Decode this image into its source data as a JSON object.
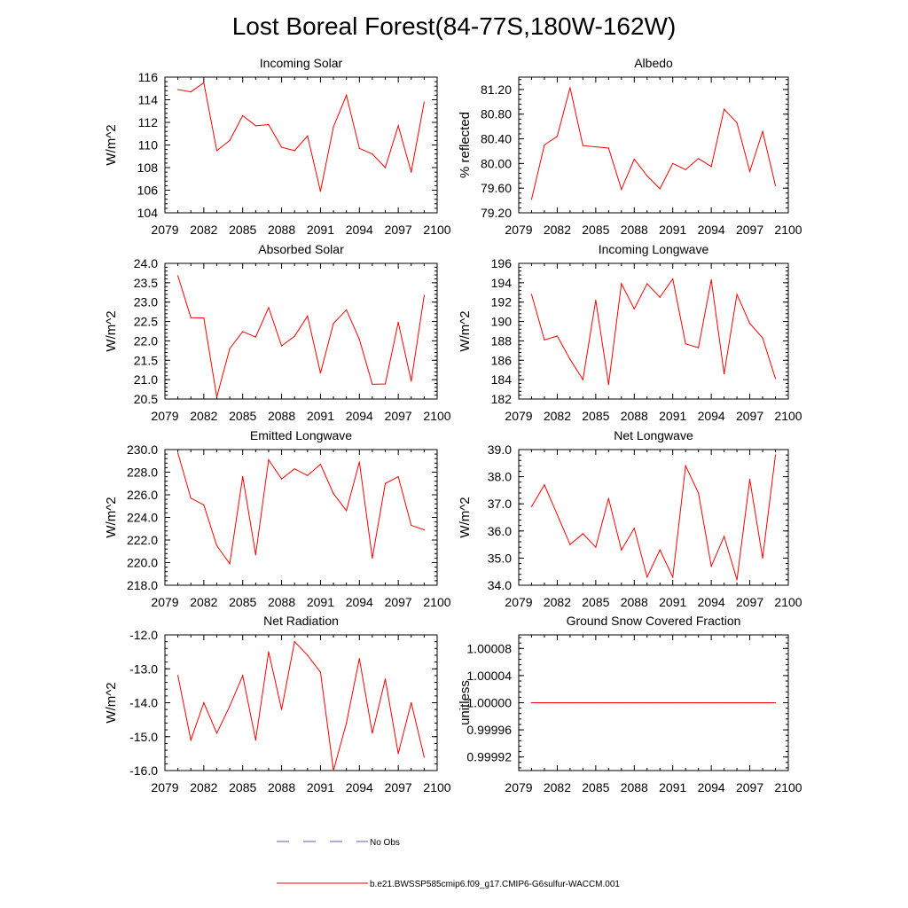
{
  "title": "Lost Boreal Forest(84-77S,180W-162W)",
  "legend": {
    "no_obs_label": "No Obs",
    "run_label": "b.e21.BWSSP585cmip6.f09_g17.CMIP6-G6sulfur-WACCM.001",
    "no_obs_color": "#5a5ab4",
    "run_color": "#ff0000"
  },
  "chart_data": [
    {
      "type": "line",
      "title": "Incoming Solar",
      "ylabel": "W/m^2",
      "xlim": [
        2079,
        2100
      ],
      "ylim": [
        104,
        116
      ],
      "xticks": [
        "2079",
        "2082",
        "2085",
        "2088",
        "2091",
        "2094",
        "2097",
        "2100"
      ],
      "yticks": [
        "104",
        "106",
        "108",
        "110",
        "112",
        "114",
        "116"
      ],
      "x": [
        2080,
        2081,
        2082,
        2083,
        2084,
        2085,
        2086,
        2087,
        2088,
        2089,
        2090,
        2091,
        2092,
        2093,
        2094,
        2095,
        2096,
        2097,
        2098,
        2099
      ],
      "series": [
        {
          "values": [
            114.9,
            114.7,
            115.5,
            109.5,
            110.4,
            112.6,
            111.7,
            111.8,
            109.8,
            109.5,
            110.8,
            105.9,
            111.6,
            114.4,
            109.7,
            109.2,
            108.0,
            111.7,
            107.6,
            113.8
          ]
        }
      ]
    },
    {
      "type": "line",
      "title": "Albedo",
      "ylabel": "% reflected",
      "xlim": [
        2079,
        2100
      ],
      "ylim": [
        79.2,
        81.4
      ],
      "xticks": [
        "2079",
        "2082",
        "2085",
        "2088",
        "2091",
        "2094",
        "2097",
        "2100"
      ],
      "yticks": [
        "79.20",
        "79.60",
        "80.00",
        "80.40",
        "80.80",
        "81.20"
      ],
      "x": [
        2080,
        2081,
        2082,
        2083,
        2084,
        2085,
        2086,
        2087,
        2088,
        2089,
        2090,
        2091,
        2092,
        2093,
        2094,
        2095,
        2096,
        2097,
        2098,
        2099
      ],
      "series": [
        {
          "values": [
            79.42,
            80.3,
            80.44,
            81.23,
            80.29,
            80.27,
            80.25,
            79.58,
            80.07,
            79.8,
            79.59,
            80.0,
            79.9,
            80.08,
            79.95,
            80.88,
            80.66,
            79.87,
            80.52,
            79.64
          ]
        }
      ]
    },
    {
      "type": "line",
      "title": "Absorbed Solar",
      "ylabel": "W/m^2",
      "xlim": [
        2079,
        2100
      ],
      "ylim": [
        20.5,
        24.0
      ],
      "xticks": [
        "2079",
        "2082",
        "2085",
        "2088",
        "2091",
        "2094",
        "2097",
        "2100"
      ],
      "yticks": [
        "20.5",
        "21.0",
        "21.5",
        "22.0",
        "22.5",
        "23.0",
        "23.5",
        "24.0"
      ],
      "x": [
        2080,
        2081,
        2082,
        2083,
        2084,
        2085,
        2086,
        2087,
        2088,
        2089,
        2090,
        2091,
        2092,
        2093,
        2094,
        2095,
        2096,
        2097,
        2098,
        2099
      ],
      "series": [
        {
          "values": [
            23.68,
            22.6,
            22.59,
            20.55,
            21.8,
            22.24,
            22.1,
            22.86,
            21.87,
            22.12,
            22.64,
            21.17,
            22.45,
            22.8,
            22.04,
            20.88,
            20.89,
            22.48,
            20.96,
            23.17
          ]
        }
      ]
    },
    {
      "type": "line",
      "title": "Incoming Longwave",
      "ylabel": "W/m^2",
      "xlim": [
        2079,
        2100
      ],
      "ylim": [
        182,
        196
      ],
      "xticks": [
        "2079",
        "2082",
        "2085",
        "2088",
        "2091",
        "2094",
        "2097",
        "2100"
      ],
      "yticks": [
        "182",
        "184",
        "186",
        "188",
        "190",
        "192",
        "194",
        "196"
      ],
      "x": [
        2080,
        2081,
        2082,
        2083,
        2084,
        2085,
        2086,
        2087,
        2088,
        2089,
        2090,
        2091,
        2092,
        2093,
        2094,
        2095,
        2096,
        2097,
        2098,
        2099
      ],
      "series": [
        {
          "values": [
            192.8,
            188.1,
            188.5,
            186.1,
            184.0,
            192.2,
            183.5,
            193.9,
            191.3,
            193.9,
            192.5,
            194.4,
            187.7,
            187.3,
            194.3,
            184.6,
            192.8,
            189.8,
            188.3,
            184.1
          ]
        }
      ]
    },
    {
      "type": "line",
      "title": "Emitted Longwave",
      "ylabel": "W/m^2",
      "xlim": [
        2079,
        2100
      ],
      "ylim": [
        218.0,
        230.0
      ],
      "xticks": [
        "2079",
        "2082",
        "2085",
        "2088",
        "2091",
        "2094",
        "2097",
        "2100"
      ],
      "yticks": [
        "218.0",
        "220.0",
        "222.0",
        "224.0",
        "226.0",
        "228.0",
        "230.0"
      ],
      "x": [
        2080,
        2081,
        2082,
        2083,
        2084,
        2085,
        2086,
        2087,
        2088,
        2089,
        2090,
        2091,
        2092,
        2093,
        2094,
        2095,
        2096,
        2097,
        2098,
        2099
      ],
      "series": [
        {
          "values": [
            229.7,
            225.7,
            225.1,
            221.5,
            219.9,
            227.6,
            220.7,
            229.1,
            227.4,
            228.3,
            227.7,
            228.7,
            226.1,
            224.6,
            228.9,
            220.4,
            227.0,
            227.6,
            223.3,
            222.9
          ]
        }
      ]
    },
    {
      "type": "line",
      "title": "Net Longwave",
      "ylabel": "W/m^2",
      "xlim": [
        2079,
        2100
      ],
      "ylim": [
        34.0,
        39.0
      ],
      "xticks": [
        "2079",
        "2082",
        "2085",
        "2088",
        "2091",
        "2094",
        "2097",
        "2100"
      ],
      "yticks": [
        "34.0",
        "35.0",
        "36.0",
        "37.0",
        "38.0",
        "39.0"
      ],
      "x": [
        2080,
        2081,
        2082,
        2083,
        2084,
        2085,
        2086,
        2087,
        2088,
        2089,
        2090,
        2091,
        2092,
        2093,
        2094,
        2095,
        2096,
        2097,
        2098,
        2099
      ],
      "series": [
        {
          "values": [
            36.9,
            37.7,
            36.6,
            35.5,
            35.9,
            35.4,
            37.2,
            35.3,
            36.1,
            34.3,
            35.3,
            34.3,
            38.4,
            37.4,
            34.7,
            35.8,
            34.2,
            37.9,
            35.0,
            38.8
          ]
        }
      ]
    },
    {
      "type": "line",
      "title": "Net Radiation",
      "ylabel": "W/m^2",
      "xlim": [
        2079,
        2100
      ],
      "ylim": [
        -16.0,
        -12.0
      ],
      "xticks": [
        "2079",
        "2082",
        "2085",
        "2088",
        "2091",
        "2094",
        "2097",
        "2100"
      ],
      "yticks": [
        "-16.0",
        "-15.0",
        "-14.0",
        "-13.0",
        "-12.0"
      ],
      "x": [
        2080,
        2081,
        2082,
        2083,
        2084,
        2085,
        2086,
        2087,
        2088,
        2089,
        2090,
        2091,
        2092,
        2093,
        2094,
        2095,
        2096,
        2097,
        2098,
        2099
      ],
      "series": [
        {
          "values": [
            -13.2,
            -15.1,
            -14.0,
            -14.9,
            -14.1,
            -13.2,
            -15.1,
            -12.5,
            -14.2,
            -12.2,
            -12.6,
            -13.1,
            -16.0,
            -14.6,
            -12.7,
            -14.9,
            -13.3,
            -15.5,
            -14.0,
            -15.6
          ]
        }
      ]
    },
    {
      "type": "line",
      "title": "Ground Snow Covered Fraction",
      "ylabel": "unitless",
      "xlim": [
        2079,
        2100
      ],
      "ylim": [
        0.9999,
        1.0001
      ],
      "xticks": [
        "2079",
        "2082",
        "2085",
        "2088",
        "2091",
        "2094",
        "2097",
        "2100"
      ],
      "yticks": [
        "0.99992",
        "0.99996",
        "1.00000",
        "1.00004",
        "1.00008"
      ],
      "x": [
        2080,
        2081,
        2082,
        2083,
        2084,
        2085,
        2086,
        2087,
        2088,
        2089,
        2090,
        2091,
        2092,
        2093,
        2094,
        2095,
        2096,
        2097,
        2098,
        2099
      ],
      "series": [
        {
          "values": [
            1.0,
            1.0,
            1.0,
            1.0,
            1.0,
            1.0,
            1.0,
            1.0,
            1.0,
            1.0,
            1.0,
            1.0,
            1.0,
            1.0,
            1.0,
            1.0,
            1.0,
            1.0,
            1.0,
            1.0
          ]
        }
      ]
    }
  ]
}
